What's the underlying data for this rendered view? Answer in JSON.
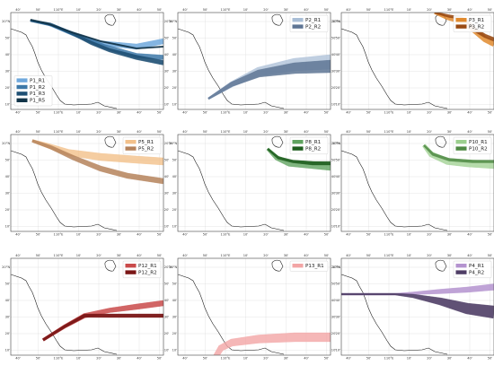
{
  "panels": [
    {
      "id": "p1",
      "top_labels": [
        "40'",
        "50'",
        "110°E",
        "10'",
        "20'",
        "30'",
        "40'",
        "50'"
      ],
      "bottom_labels": [
        "40'",
        "50'",
        "110°E",
        "10'",
        "20'",
        "30'",
        "40'",
        "50'"
      ],
      "left_labels": [
        "20°N",
        "50'",
        "40'",
        "30'",
        "20'",
        "10'"
      ],
      "right_labels": [
        "20°N",
        "50'",
        "40'",
        "30'",
        "20'",
        "10'"
      ],
      "legend": [
        {
          "label": "P1_R1",
          "color": "#6fa8dc"
        },
        {
          "label": "P1_R2",
          "color": "#3d78a8"
        },
        {
          "label": "P1_R3",
          "color": "#1e4f73"
        },
        {
          "label": "P1_R5",
          "color": "#123448"
        }
      ]
    },
    {
      "id": "p2",
      "top_labels": [
        "40'",
        "50'",
        "110°E",
        "10'",
        "20'",
        "30'",
        "40'",
        "50'"
      ],
      "bottom_labels": [
        "40'",
        "50'",
        "110°E",
        "10'",
        "20'",
        "30'",
        "40'",
        "50'"
      ],
      "left_labels": [
        "20°N",
        "50'",
        "40'",
        "30'",
        "20'",
        "10'"
      ],
      "right_labels": [
        "20°N",
        "50'",
        "40'",
        "30'",
        "20'",
        "10'"
      ],
      "legend": [
        {
          "label": "P2_R1",
          "color": "#a9bed6"
        },
        {
          "label": "P2_R2",
          "color": "#5e7594"
        }
      ]
    },
    {
      "id": "p3",
      "top_labels": [
        "40'",
        "50'",
        "110°E",
        "10'",
        "20'",
        "30'",
        "40'",
        "50'"
      ],
      "bottom_labels": [
        "40'",
        "50'",
        "110°E",
        "10'",
        "20'",
        "30'",
        "40'",
        "50'"
      ],
      "left_labels": [
        "20°N",
        "50'",
        "40'",
        "30'",
        "20'",
        "10'"
      ],
      "right_labels": [
        "20°N",
        "50'",
        "40'",
        "30'",
        "20'",
        "10'"
      ],
      "legend": [
        {
          "label": "P3_R1",
          "color": "#e08a2e"
        },
        {
          "label": "P3_R2",
          "color": "#9a4a12"
        }
      ]
    },
    {
      "id": "p5",
      "top_labels": [
        "40'",
        "50'",
        "110°E",
        "10'",
        "20'",
        "30'",
        "40'",
        "50'"
      ],
      "bottom_labels": [
        "40'",
        "50'",
        "110°E",
        "10'",
        "20'",
        "30'",
        "40'",
        "50'"
      ],
      "left_labels": [
        "20°N",
        "50'",
        "40'",
        "30'",
        "20'",
        "10'"
      ],
      "right_labels": [
        "20°N",
        "50'",
        "40'",
        "30'",
        "20'",
        "10'"
      ],
      "legend": [
        {
          "label": "P5_R1",
          "color": "#f2c08a"
        },
        {
          "label": "P5_R2",
          "color": "#b5825a"
        }
      ]
    },
    {
      "id": "p8",
      "top_labels": [
        "40'",
        "50'",
        "110°E",
        "10'",
        "20'",
        "30'",
        "40'",
        "50'"
      ],
      "bottom_labels": [
        "40'",
        "50'",
        "110°E",
        "10'",
        "20'",
        "30'",
        "40'",
        "50'"
      ],
      "left_labels": [
        "20°N",
        "50'",
        "40'",
        "30'",
        "20'",
        "10'"
      ],
      "right_labels": [
        "20°N",
        "50'",
        "40'",
        "30'",
        "20'",
        "10'"
      ],
      "legend": [
        {
          "label": "P8_R1",
          "color": "#5fa35f"
        },
        {
          "label": "P8_R2",
          "color": "#1f5e1f"
        }
      ]
    },
    {
      "id": "p10",
      "top_labels": [
        "40'",
        "50'",
        "110°E",
        "10'",
        "20'",
        "30'",
        "40'",
        "50'"
      ],
      "bottom_labels": [
        "40'",
        "50'",
        "110°E",
        "10'",
        "20'",
        "30'",
        "40'",
        "50'"
      ],
      "left_labels": [
        "20°N",
        "50'",
        "40'",
        "30'",
        "20'",
        "10'"
      ],
      "right_labels": [
        "20°N",
        "50'",
        "40'",
        "30'",
        "20'",
        "10'"
      ],
      "legend": [
        {
          "label": "P10_R1",
          "color": "#9ccf8e"
        },
        {
          "label": "P10_R2",
          "color": "#4f8a44"
        }
      ]
    },
    {
      "id": "p12",
      "top_labels": [
        "40'",
        "50'",
        "110°E",
        "10'",
        "20'",
        "30'",
        "40'",
        "50'"
      ],
      "bottom_labels": [
        "40'",
        "50'",
        "110°E",
        "10'",
        "20'",
        "30'",
        "40'",
        "50'"
      ],
      "left_labels": [
        "20°N",
        "50'",
        "40'",
        "30'",
        "20'",
        "10'"
      ],
      "right_labels": [
        "20°N",
        "50'",
        "40'",
        "30'",
        "20'",
        "10'"
      ],
      "legend": [
        {
          "label": "P12_R1",
          "color": "#c94a4a"
        },
        {
          "label": "P12_R2",
          "color": "#7a1616"
        }
      ]
    },
    {
      "id": "p13",
      "top_labels": [
        "40'",
        "50'",
        "110°E",
        "10'",
        "20'",
        "30'",
        "40'",
        "50'"
      ],
      "bottom_labels": [
        "40'",
        "50'",
        "110°E",
        "10'",
        "20'",
        "30'",
        "40'",
        "50'"
      ],
      "left_labels": [
        "20°N",
        "50'",
        "40'",
        "30'",
        "20'",
        "10'"
      ],
      "right_labels": [
        "20°N",
        "50'",
        "40'",
        "30'",
        "20'",
        "10'"
      ],
      "legend": [
        {
          "label": "P13_R1",
          "color": "#f2a5a5"
        }
      ]
    },
    {
      "id": "p4",
      "top_labels": [
        "40'",
        "50'",
        "110°E",
        "10'",
        "20'",
        "30'",
        "40'",
        "50'"
      ],
      "bottom_labels": [
        "40'",
        "50'",
        "110°E",
        "10'",
        "20'",
        "30'",
        "40'",
        "50'"
      ],
      "left_labels": [
        "20°N",
        "50'",
        "40'",
        "30'",
        "20'",
        "10'"
      ],
      "right_labels": [
        "20°N",
        "50'",
        "40'",
        "30'",
        "20'",
        "10'"
      ],
      "legend": [
        {
          "label": "P4_R1",
          "color": "#b493cf"
        },
        {
          "label": "P4_R2",
          "color": "#4f3e66"
        }
      ]
    }
  ]
}
